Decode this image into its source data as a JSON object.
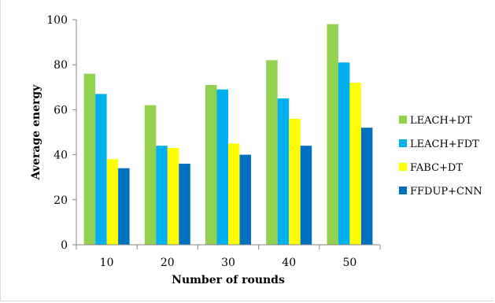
{
  "chart_data": {
    "type": "bar",
    "title": "",
    "xlabel": "Number of rounds",
    "ylabel": "Average energy",
    "categories": [
      "10",
      "20",
      "30",
      "40",
      "50"
    ],
    "ylim": [
      0,
      100
    ],
    "yticks": [
      0,
      20,
      40,
      60,
      80,
      100
    ],
    "grid": false,
    "legend_position": "right",
    "series": [
      {
        "name": "LEACH+DT",
        "color": "#92d050",
        "values": [
          76,
          62,
          71,
          82,
          98
        ]
      },
      {
        "name": "LEACH+FDT",
        "color": "#00b0f0",
        "values": [
          67,
          44,
          69,
          65,
          81
        ]
      },
      {
        "name": "FABC+DT",
        "color": "#ffff00",
        "values": [
          38,
          43,
          45,
          56,
          72
        ]
      },
      {
        "name": "FFDUP+CNN",
        "color": "#0070c0",
        "values": [
          34,
          36,
          40,
          44,
          52
        ]
      }
    ]
  }
}
